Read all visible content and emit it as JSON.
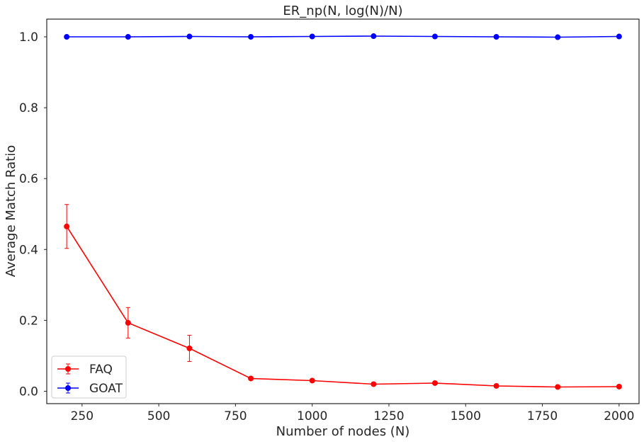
{
  "chart_data": {
    "type": "line",
    "title": "ER_np(N, log(N)/N)",
    "xlabel": "Number of nodes (N)",
    "ylabel": "Average Match Ratio",
    "x": [
      200,
      400,
      600,
      800,
      1000,
      1200,
      1400,
      1600,
      1800,
      2000
    ],
    "xlim": [
      135,
      2065
    ],
    "ylim": [
      -0.035,
      1.05
    ],
    "xticks": [
      250,
      500,
      750,
      1000,
      1250,
      1500,
      1750,
      2000
    ],
    "yticks": [
      0.0,
      0.2,
      0.4,
      0.6,
      0.8,
      1.0
    ],
    "ytick_labels": [
      "0.0",
      "0.2",
      "0.4",
      "0.6",
      "0.8",
      "1.0"
    ],
    "grid": false,
    "legend_position": "lower-left",
    "series": [
      {
        "name": "FAQ",
        "color": "#ff0000",
        "values": [
          0.465,
          0.193,
          0.121,
          0.036,
          0.03,
          0.02,
          0.023,
          0.015,
          0.012,
          0.013
        ],
        "errors": [
          0.062,
          0.043,
          0.037,
          0.002,
          0.002,
          0.002,
          0.002,
          0.002,
          0.002,
          0.002
        ]
      },
      {
        "name": "GOAT",
        "color": "#0000ff",
        "values": [
          1.0,
          1.0,
          1.001,
          1.0,
          1.001,
          1.002,
          1.001,
          1.0,
          0.999,
          1.001
        ],
        "errors": [
          0.001,
          0.001,
          0.001,
          0.001,
          0.001,
          0.001,
          0.001,
          0.001,
          0.001,
          0.001
        ]
      }
    ]
  }
}
